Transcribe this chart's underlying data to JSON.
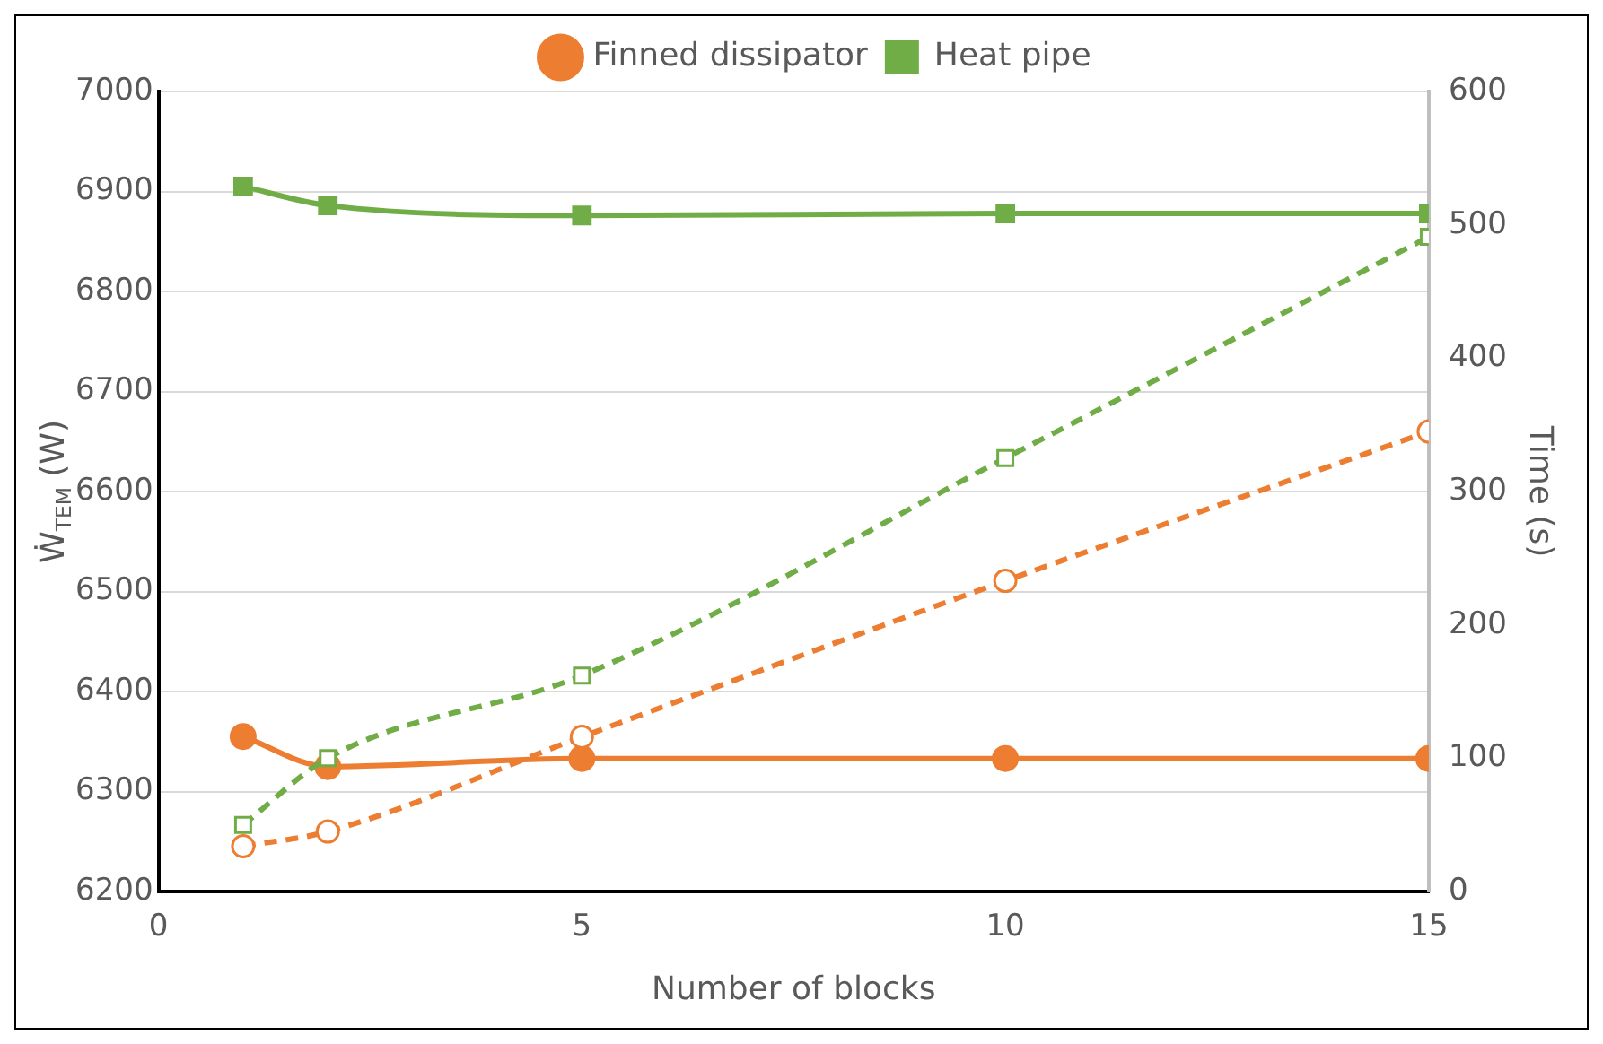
{
  "chart_data": {
    "type": "line",
    "xlabel": "Number of blocks",
    "ylabel": "Ẇ$_{TEM}$ (W)",
    "y2label": "Time (s)",
    "x": [
      1,
      2,
      5,
      10,
      15
    ],
    "series": [
      {
        "name": "Finned dissipator",
        "color": "#ed7d31",
        "marker": "circle",
        "line_style": "solid",
        "values": [
          6355,
          6325,
          6333,
          6333,
          6333
        ]
      },
      {
        "name": "Heat pipe",
        "color": "#70ad47",
        "marker": "square",
        "line_style": "solid",
        "values": [
          6905,
          6886,
          6876,
          6878,
          6878
        ]
      },
      {
        "color": "#ed7d31",
        "marker": "circle",
        "line_style": "dashed",
        "axis": "y2",
        "values": [
          34,
          45,
          116,
          233,
          345
        ]
      },
      {
        "color": "#70ad47",
        "marker": "square",
        "line_style": "dashed",
        "axis": "y2",
        "values": [
          50,
          100,
          162,
          325,
          491
        ]
      }
    ],
    "xlim": [
      0,
      15
    ],
    "xticks": [
      0,
      5,
      10,
      15
    ],
    "ylim": [
      6200,
      7000
    ],
    "yticks": [
      6200,
      6300,
      6400,
      6500,
      6600,
      6700,
      6800,
      6900,
      7000
    ],
    "y2lim": [
      0,
      600
    ],
    "y2ticks": [
      0,
      100,
      200,
      300,
      400,
      500,
      600
    ],
    "grid": "y",
    "legend": "top"
  }
}
